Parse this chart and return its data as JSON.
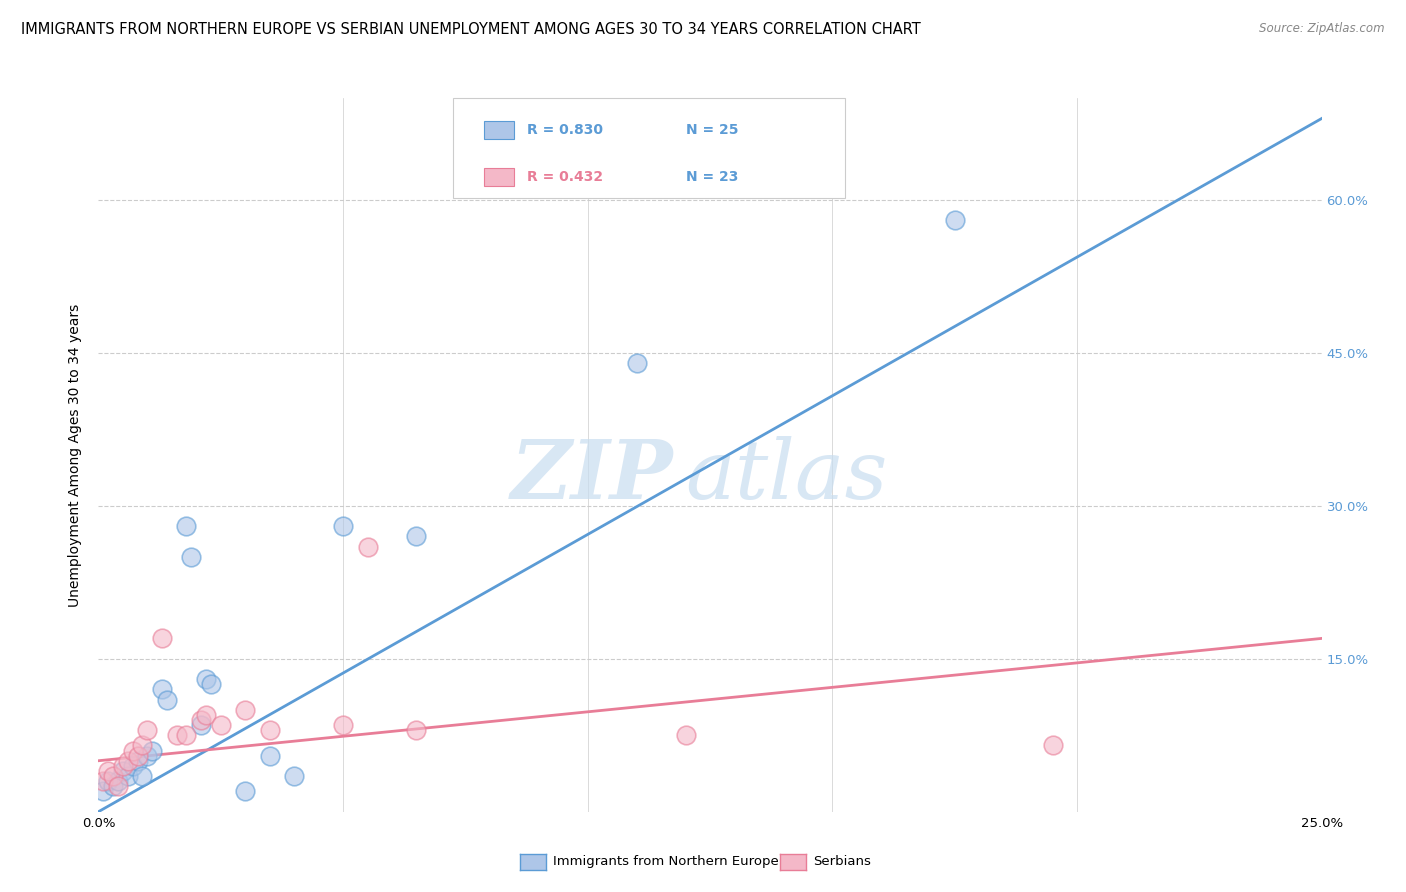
{
  "title": "IMMIGRANTS FROM NORTHERN EUROPE VS SERBIAN UNEMPLOYMENT AMONG AGES 30 TO 34 YEARS CORRELATION CHART",
  "source": "Source: ZipAtlas.com",
  "ylabel": "Unemployment Among Ages 30 to 34 years",
  "xlim": [
    0.0,
    0.25
  ],
  "ylim": [
    0.0,
    0.7
  ],
  "x_ticks": [
    0.0,
    0.05,
    0.1,
    0.15,
    0.2,
    0.25
  ],
  "y_ticks": [
    0.0,
    0.15,
    0.3,
    0.45,
    0.6
  ],
  "y_tick_labels": [
    "",
    "15.0%",
    "30.0%",
    "45.0%",
    "60.0%"
  ],
  "legend_r1": "R = 0.830",
  "legend_n1": "N = 25",
  "legend_r2": "R = 0.432",
  "legend_n2": "N = 23",
  "legend_label1": "Immigrants from Northern Europe",
  "legend_label2": "Serbians",
  "blue_scatter": [
    [
      0.001,
      0.02
    ],
    [
      0.002,
      0.03
    ],
    [
      0.003,
      0.025
    ],
    [
      0.004,
      0.03
    ],
    [
      0.005,
      0.04
    ],
    [
      0.006,
      0.035
    ],
    [
      0.007,
      0.045
    ],
    [
      0.008,
      0.05
    ],
    [
      0.009,
      0.035
    ],
    [
      0.01,
      0.055
    ],
    [
      0.011,
      0.06
    ],
    [
      0.013,
      0.12
    ],
    [
      0.014,
      0.11
    ],
    [
      0.018,
      0.28
    ],
    [
      0.019,
      0.25
    ],
    [
      0.021,
      0.085
    ],
    [
      0.022,
      0.13
    ],
    [
      0.023,
      0.125
    ],
    [
      0.03,
      0.02
    ],
    [
      0.035,
      0.055
    ],
    [
      0.04,
      0.035
    ],
    [
      0.05,
      0.28
    ],
    [
      0.065,
      0.27
    ],
    [
      0.11,
      0.44
    ],
    [
      0.175,
      0.58
    ]
  ],
  "pink_scatter": [
    [
      0.001,
      0.03
    ],
    [
      0.002,
      0.04
    ],
    [
      0.003,
      0.035
    ],
    [
      0.004,
      0.025
    ],
    [
      0.005,
      0.045
    ],
    [
      0.006,
      0.05
    ],
    [
      0.007,
      0.06
    ],
    [
      0.008,
      0.055
    ],
    [
      0.009,
      0.065
    ],
    [
      0.01,
      0.08
    ],
    [
      0.013,
      0.17
    ],
    [
      0.016,
      0.075
    ],
    [
      0.018,
      0.075
    ],
    [
      0.021,
      0.09
    ],
    [
      0.022,
      0.095
    ],
    [
      0.025,
      0.085
    ],
    [
      0.03,
      0.1
    ],
    [
      0.035,
      0.08
    ],
    [
      0.05,
      0.085
    ],
    [
      0.055,
      0.26
    ],
    [
      0.065,
      0.08
    ],
    [
      0.12,
      0.075
    ],
    [
      0.195,
      0.065
    ]
  ],
  "blue_line_x": [
    0.0,
    0.25
  ],
  "blue_line_y": [
    0.0,
    0.68
  ],
  "pink_line_x": [
    0.0,
    0.25
  ],
  "pink_line_y": [
    0.05,
    0.17
  ],
  "blue_color": "#5b9bd5",
  "blue_fill": "#aec6e8",
  "pink_color": "#e87d97",
  "pink_fill": "#f4b8c8",
  "watermark_zip": "ZIP",
  "watermark_atlas": "atlas",
  "background_color": "#ffffff",
  "grid_color": "#cccccc",
  "title_fontsize": 10.5,
  "axis_label_fontsize": 10,
  "tick_fontsize": 9.5,
  "scatter_size": 180,
  "right_tick_color": "#5b9bd5"
}
